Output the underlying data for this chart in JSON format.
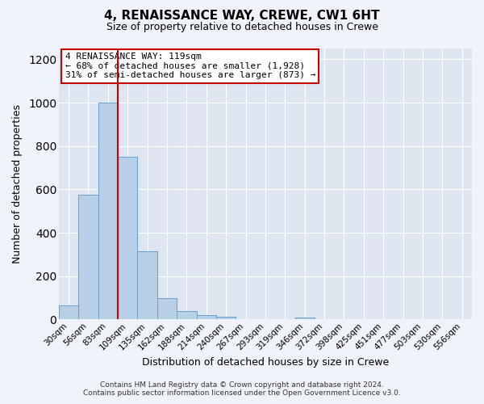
{
  "title": "4, RENAISSANCE WAY, CREWE, CW1 6HT",
  "subtitle": "Size of property relative to detached houses in Crewe",
  "xlabel": "Distribution of detached houses by size in Crewe",
  "ylabel": "Number of detached properties",
  "bar_color": "#b8cfe8",
  "bar_edge_color": "#6a9fd0",
  "background_color": "#dde6f0",
  "grid_color": "#ffffff",
  "categories": [
    "30sqm",
    "56sqm",
    "83sqm",
    "109sqm",
    "135sqm",
    "162sqm",
    "188sqm",
    "214sqm",
    "240sqm",
    "267sqm",
    "293sqm",
    "319sqm",
    "346sqm",
    "372sqm",
    "398sqm",
    "425sqm",
    "451sqm",
    "477sqm",
    "503sqm",
    "530sqm",
    "556sqm"
  ],
  "values": [
    65,
    575,
    1000,
    750,
    315,
    100,
    38,
    22,
    13,
    0,
    0,
    0,
    10,
    0,
    0,
    0,
    0,
    0,
    0,
    0,
    0
  ],
  "vline_position": 3,
  "vline_color": "#cc0000",
  "annotation_title": "4 RENAISSANCE WAY: 119sqm",
  "annotation_line1": "← 68% of detached houses are smaller (1,928)",
  "annotation_line2": "31% of semi-detached houses are larger (873) →",
  "annotation_box_color": "#ffffff",
  "annotation_box_edge_color": "#cc0000",
  "ylim": [
    0,
    1250
  ],
  "yticks": [
    0,
    200,
    400,
    600,
    800,
    1000,
    1200
  ],
  "footer_line1": "Contains HM Land Registry data © Crown copyright and database right 2024.",
  "footer_line2": "Contains public sector information licensed under the Open Government Licence v3.0."
}
